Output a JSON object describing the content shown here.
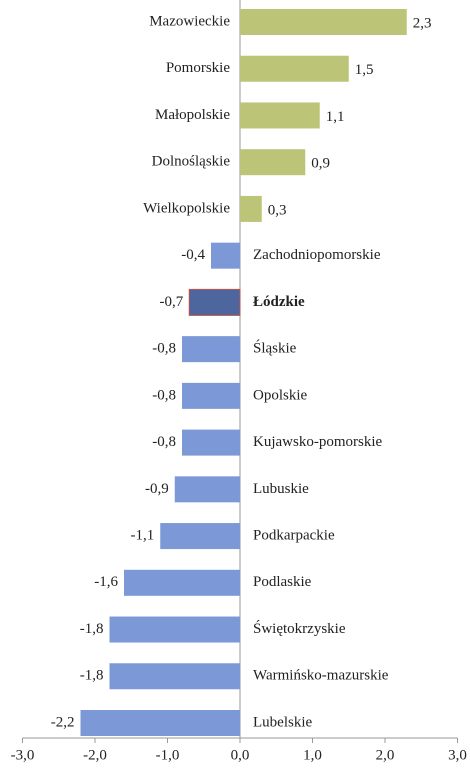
{
  "chart_data": {
    "type": "bar",
    "orientation": "horizontal",
    "categories": [
      "Mazowieckie",
      "Pomorskie",
      "Małopolskie",
      "Dolnośląskie",
      "Wielkopolskie",
      "Zachodniopomorskie",
      "Łódzkie",
      "Śląskie",
      "Opolskie",
      "Kujawsko-pomorskie",
      "Lubuskie",
      "Podkarpackie",
      "Podlaskie",
      "Świętokrzyskie",
      "Warmińsko-mazurskie",
      "Lubelskie"
    ],
    "values": [
      2.3,
      1.5,
      1.1,
      0.9,
      0.3,
      -0.4,
      -0.7,
      -0.8,
      -0.8,
      -0.8,
      -0.9,
      -1.1,
      -1.6,
      -1.8,
      -1.8,
      -2.2
    ],
    "value_labels": [
      "2,3",
      "1,5",
      "1,1",
      "0,9",
      "0,3",
      "-0,4",
      "-0,7",
      "-0,8",
      "-0,8",
      "-0,8",
      "-0,9",
      "-1,1",
      "-1,6",
      "-1,8",
      "-1,8",
      "-2,2"
    ],
    "colors": [
      "#bcc577",
      "#bcc577",
      "#bcc577",
      "#bcc577",
      "#bcc577",
      "#7d98d6",
      "#4d679e",
      "#7d98d6",
      "#7d98d6",
      "#7d98d6",
      "#7d98d6",
      "#7d98d6",
      "#7d98d6",
      "#7d98d6",
      "#7d98d6",
      "#7d98d6"
    ],
    "highlight": "Łódzkie",
    "xlim": [
      -3,
      3
    ],
    "xticks": [
      {
        "value": -3,
        "label": "-3,0"
      },
      {
        "value": -2,
        "label": "-2,0"
      },
      {
        "value": -1,
        "label": "-1,0"
      },
      {
        "value": 0,
        "label": "0,0"
      },
      {
        "value": 1,
        "label": "1,0"
      },
      {
        "value": 2,
        "label": "2,0"
      },
      {
        "value": 3,
        "label": "3,0"
      }
    ],
    "grid": false
  }
}
